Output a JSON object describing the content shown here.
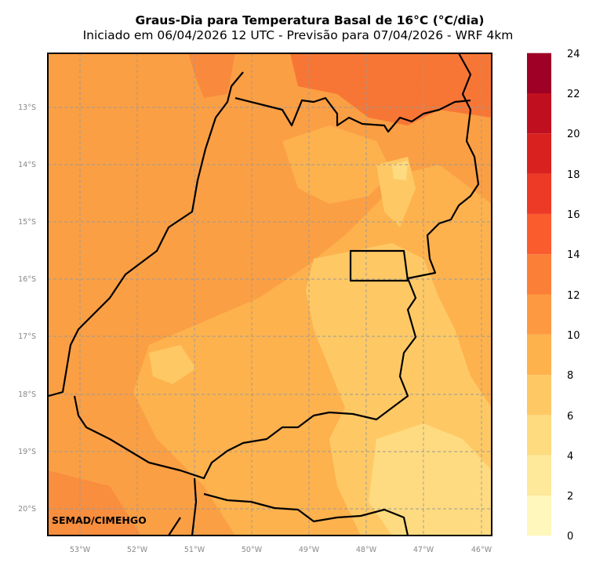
{
  "title": "Graus-Dia para Temperatura Basal de 16°C (°C/dia)",
  "subtitle": "Iniciado em 06/04/2026 12 UTC - Previsão para 07/04/2026 - WRF 4km",
  "watermark": "SEMAD/CIMEHGO",
  "lat_ticks": [
    "13°S",
    "14°S",
    "15°S",
    "16°S",
    "17°S",
    "18°S",
    "19°S",
    "20°S"
  ],
  "lon_ticks": [
    "53°W",
    "52°W",
    "51°W",
    "50°W",
    "49°W",
    "48°W",
    "47°W",
    "46°W"
  ],
  "colorbar": {
    "labels": [
      "24",
      "22",
      "20",
      "18",
      "16",
      "14",
      "12",
      "10",
      "8",
      "6",
      "4",
      "2",
      "0"
    ],
    "colors": [
      "#fff7bc",
      "#fee99a",
      "#fedb7f",
      "#fec964",
      "#feb24c",
      "#fd9a41",
      "#fc7f37",
      "#fa5c2e",
      "#ec3a26",
      "#d9211f",
      "#c0101f",
      "#9e0026"
    ]
  },
  "field_colors": {
    "base": "#fb9f44",
    "warm": "#f98a3d",
    "hot": "#f66f33",
    "mid": "#fdb24e",
    "light": "#fec965",
    "lighter": "#fedb80"
  }
}
